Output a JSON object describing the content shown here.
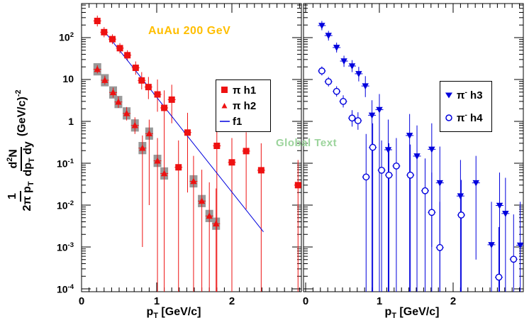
{
  "colors": {
    "red": "#ee1111",
    "blue": "#0000dd",
    "gray": "#999999",
    "gold": "#ffbe00",
    "light_green": "#9cd49c",
    "black": "#000000",
    "white": "#ffffff"
  },
  "annotations": {
    "global": {
      "text": "Global Text",
      "color": "#9cd49c"
    }
  },
  "labels": {
    "x_title": "p_{T} [GeV/c]",
    "y_frac1_num": "1",
    "y_frac1_den": "2π p_{T}",
    "y_frac2_num": "d^{2}N",
    "y_frac2_den": "dp_{T} dy",
    "y_unit": "(GeV/c)^{-2}"
  },
  "chart_data": [
    {
      "type": "scatter",
      "panel": "left",
      "title": "AuAu 200 GeV",
      "title_color": "#ffbe00",
      "xlabel": "p_{T} [GeV/c]",
      "ylabel": "1/(2π p_{T}) d^{2}N/(dp_{T} dy) (GeV/c)^{-2}",
      "yscale": "log",
      "xlim": [
        0,
        2.92
      ],
      "ylim": [
        0.0001,
        650
      ],
      "grid": false,
      "x_tick_labels": [
        "0",
        "1",
        "2"
      ],
      "x_tick_values": [
        0,
        1,
        2
      ],
      "y_tick_labels": [
        "10^{2}",
        "10",
        "1",
        "10^{-1}",
        "10^{-2}",
        "10^{-3}",
        "10^{-4}"
      ],
      "y_tick_values": [
        100,
        10,
        1,
        0.1,
        0.01,
        0.001,
        0.0001
      ],
      "legend_position": "middle-right",
      "series": [
        {
          "name": "π h1",
          "marker": "filled-square",
          "color": "red",
          "points_format": [
            "x",
            "y",
            "err_low",
            "err_high"
          ],
          "points": [
            [
              0.21,
              250,
              185,
              335
            ],
            [
              0.3,
              135,
              102,
              178
            ],
            [
              0.41,
              92,
              70,
              120
            ],
            [
              0.51,
              56,
              42,
              74
            ],
            [
              0.61,
              38,
              28,
              50
            ],
            [
              0.72,
              19,
              13,
              27
            ],
            [
              0.8,
              9.5,
              5.8,
              15
            ],
            [
              0.89,
              6.6,
              3.4,
              11.5
            ],
            [
              1.01,
              4.4,
              1.7,
              10
            ],
            [
              1.1,
              2.1,
              0.25,
              5.5
            ],
            [
              1.2,
              3.3,
              0.9,
              7.5
            ],
            [
              1.29,
              0.08,
              8e-05,
              0.35
            ],
            [
              1.41,
              0.54,
              0.02,
              1.6
            ],
            [
              1.8,
              0.26,
              8e-05,
              0.75
            ],
            [
              2.0,
              0.105,
              8e-05,
              0.4
            ],
            [
              2.19,
              0.195,
              0.008,
              0.55
            ],
            [
              2.39,
              0.068,
              8e-05,
              0.3
            ],
            [
              2.88,
              0.03,
              8e-05,
              0.12
            ]
          ]
        },
        {
          "name": "π h2",
          "marker": "filled-triangle-up",
          "color": "red",
          "sys_boxes": true,
          "box_color": "gray",
          "box_factor": 1.4,
          "points_format": [
            "x",
            "y",
            "err_low",
            "err_high"
          ],
          "points": [
            [
              0.21,
              17.5,
              14,
              22
            ],
            [
              0.31,
              9.6,
              7.5,
              12.3
            ],
            [
              0.42,
              4.9,
              3.7,
              6.4
            ],
            [
              0.49,
              2.9,
              2.1,
              3.9
            ],
            [
              0.6,
              1.55,
              1.05,
              2.2
            ],
            [
              0.71,
              0.8,
              0.5,
              1.25
            ],
            [
              0.81,
              0.23,
              0.001,
              0.46
            ],
            [
              0.9,
              0.51,
              0.01,
              1.1
            ],
            [
              1.01,
              0.114,
              8e-05,
              0.4
            ],
            [
              1.1,
              0.057,
              8e-05,
              0.25
            ],
            [
              1.49,
              0.037,
              8e-05,
              0.15
            ],
            [
              1.6,
              0.0125,
              8e-05,
              0.07
            ],
            [
              1.7,
              0.0055,
              8e-05,
              0.035
            ],
            [
              1.79,
              0.0036,
              8e-05,
              0.025
            ]
          ]
        },
        {
          "name": "f1",
          "type": "line",
          "color": "blue",
          "line_points": [
            [
              0.28,
              160
            ],
            [
              2.42,
              0.0023
            ]
          ]
        }
      ]
    },
    {
      "type": "scatter",
      "panel": "right",
      "title": "",
      "xlabel": "p_{T} [GeV/c]",
      "yscale": "log",
      "xlim": [
        0,
        2.95
      ],
      "ylim": [
        0.0001,
        650
      ],
      "grid": false,
      "x_tick_labels": [
        "0",
        "1",
        "2"
      ],
      "x_tick_values": [
        0,
        1,
        2
      ],
      "y_tick_labels": [],
      "legend_position": "top-right",
      "series": [
        {
          "name": "π^{-} h3",
          "marker": "filled-triangle-down",
          "color": "blue",
          "points_format": [
            "x",
            "y",
            "err_low",
            "err_high"
          ],
          "points": [
            [
              0.22,
              194,
              150,
              250
            ],
            [
              0.31,
              112,
              85,
              145
            ],
            [
              0.42,
              58,
              44,
              76
            ],
            [
              0.52,
              27.5,
              20,
              37
            ],
            [
              0.63,
              21,
              15,
              29
            ],
            [
              0.72,
              13.7,
              9,
              20
            ],
            [
              0.81,
              7.0,
              3.8,
              12
            ],
            [
              0.9,
              1.4,
              8e-05,
              3.2
            ],
            [
              1.0,
              1.9,
              8e-05,
              4.5
            ],
            [
              1.12,
              0.21,
              8e-05,
              1.1
            ],
            [
              1.41,
              0.46,
              8e-05,
              1.5
            ],
            [
              1.51,
              0.148,
              8e-05,
              0.8
            ],
            [
              1.71,
              0.215,
              0.001,
              0.9
            ],
            [
              1.82,
              0.034,
              8e-05,
              0.25
            ],
            [
              2.1,
              0.0165,
              8e-05,
              0.12
            ],
            [
              2.31,
              0.034,
              0.0005,
              0.15
            ],
            [
              2.52,
              0.00113,
              8e-05,
              0.012
            ],
            [
              2.63,
              0.0098,
              8e-05,
              0.06
            ],
            [
              2.71,
              0.0063,
              8e-05,
              0.045
            ],
            [
              2.91,
              0.0011,
              8e-05,
              0.012
            ]
          ]
        },
        {
          "name": "π^{-} h4",
          "marker": "open-circle",
          "color": "blue",
          "points_format": [
            "x",
            "y",
            "err_low",
            "err_high"
          ],
          "points": [
            [
              0.22,
              16,
              12.5,
              20.5
            ],
            [
              0.31,
              8.9,
              6.8,
              11.5
            ],
            [
              0.42,
              5.2,
              3.9,
              6.9
            ],
            [
              0.51,
              3.0,
              2.15,
              4.2
            ],
            [
              0.63,
              1.2,
              0.75,
              1.85
            ],
            [
              0.71,
              1.04,
              0.63,
              1.65
            ],
            [
              0.82,
              0.047,
              8e-05,
              0.5
            ],
            [
              0.91,
              0.24,
              8e-05,
              0.9
            ],
            [
              1.03,
              0.068,
              8e-05,
              0.35
            ],
            [
              1.13,
              0.052,
              8e-05,
              0.3
            ],
            [
              1.23,
              0.086,
              8e-05,
              0.4
            ],
            [
              1.42,
              0.052,
              8e-05,
              0.28
            ],
            [
              1.62,
              0.022,
              8e-05,
              0.13
            ],
            [
              1.71,
              0.0067,
              8e-05,
              0.06
            ],
            [
              1.82,
              0.00097,
              8e-05,
              0.012
            ],
            [
              2.11,
              0.0058,
              8e-05,
              0.04
            ],
            [
              2.62,
              0.00019,
              8e-05,
              0.003
            ],
            [
              2.82,
              0.00051,
              8e-05,
              0.006
            ]
          ]
        }
      ]
    }
  ]
}
